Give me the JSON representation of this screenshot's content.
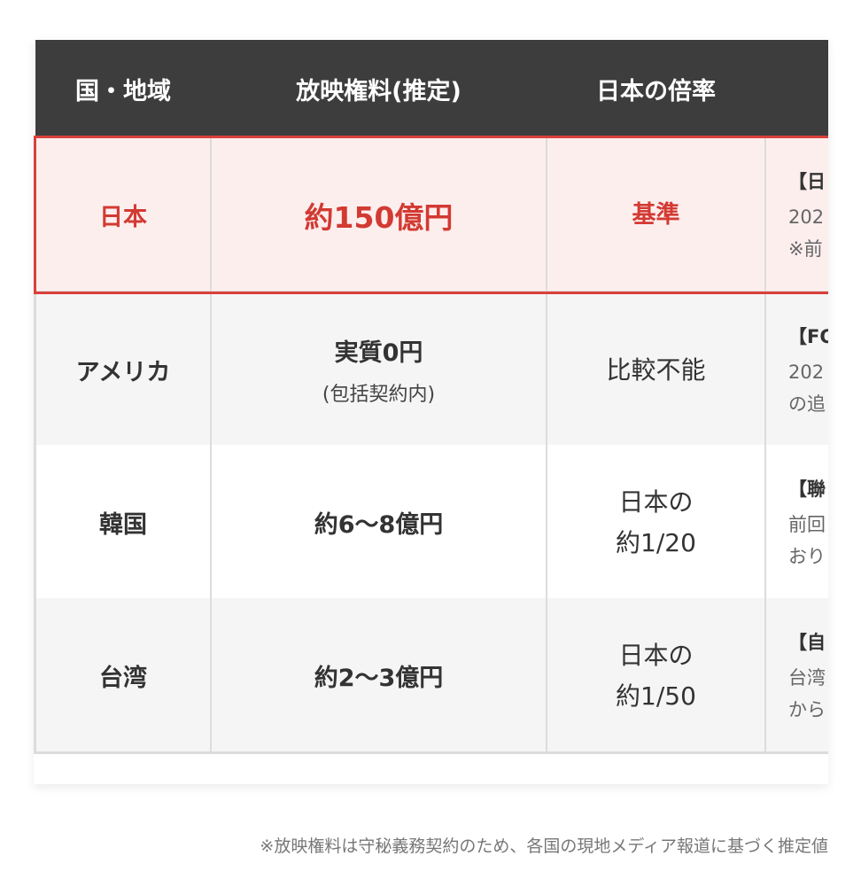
{
  "table": {
    "header": [
      "国・地域",
      "放映権料(推定)",
      "日本の倍率"
    ],
    "rows": [
      {
        "country": "日本",
        "fee": [
          "約150億円"
        ],
        "ratio": [
          "基準"
        ],
        "detail": [
          "【日",
          "202",
          "※前"
        ]
      },
      {
        "country": "アメリカ",
        "fee": [
          "実質0円",
          "(包括契約内)"
        ],
        "ratio": [
          "比較不能"
        ],
        "detail": [
          "【FO",
          "202",
          "の追"
        ]
      },
      {
        "country": "韓国",
        "fee": [
          "約6〜8億円"
        ],
        "ratio": [
          "日本の",
          "約1/20"
        ],
        "detail": [
          "【聯",
          "前回",
          "おり"
        ]
      },
      {
        "country": "台湾",
        "fee": [
          "約2〜3億円"
        ],
        "ratio": [
          "日本の",
          "約1/50"
        ],
        "detail": [
          "【自",
          "台湾",
          "から"
        ]
      }
    ]
  },
  "footnote": "※放映権料は守秘義務契約のため、各国の現地メディア報道に基づく推定値"
}
